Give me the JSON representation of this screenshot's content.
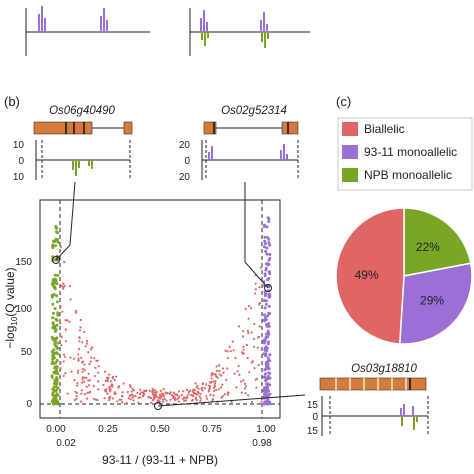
{
  "panel_b_label": "(b)",
  "panel_c_label": "(c)",
  "genes": {
    "g1": "Os06g40490",
    "g2": "Os02g52314",
    "g3": "Os03g18810"
  },
  "mini_ticks": {
    "g1": [
      "10",
      "0",
      "10"
    ],
    "g2": [
      "20",
      "0",
      "20"
    ],
    "g3": [
      "15",
      "0",
      "15"
    ]
  },
  "axis": {
    "ylabel_prefix": "−log",
    "ylabel_sub": "10",
    "ylabel_suffix": "(Q value)",
    "xlabel": "93-11 / (93-11 + NPB)",
    "yticks": [
      "0",
      "50",
      "100",
      "150"
    ],
    "xticks": [
      "0.00",
      "0.25",
      "0.50",
      "0.75",
      "1.00"
    ],
    "xmarks": [
      "0.02",
      "0.98"
    ]
  },
  "colors": {
    "biallelic": "#e06666",
    "mono_9311": "#9b6fd6",
    "mono_npb": "#7aa628",
    "gene_box": "#d47a3a"
  },
  "legend": [
    {
      "label": "Biallelic",
      "color": "#e06666"
    },
    {
      "label": "93-11 monoallelic",
      "color": "#9b6fd6"
    },
    {
      "label": "NPB monoallelic",
      "color": "#7aa628"
    }
  ],
  "chart_data": {
    "type": "pie",
    "slices": [
      {
        "label": "Biallelic",
        "value": 49,
        "text": "49%"
      },
      {
        "label": "93-11 monoallelic",
        "value": 29,
        "text": "29%"
      },
      {
        "label": "NPB monoallelic",
        "value": 22,
        "text": "22%"
      }
    ]
  }
}
